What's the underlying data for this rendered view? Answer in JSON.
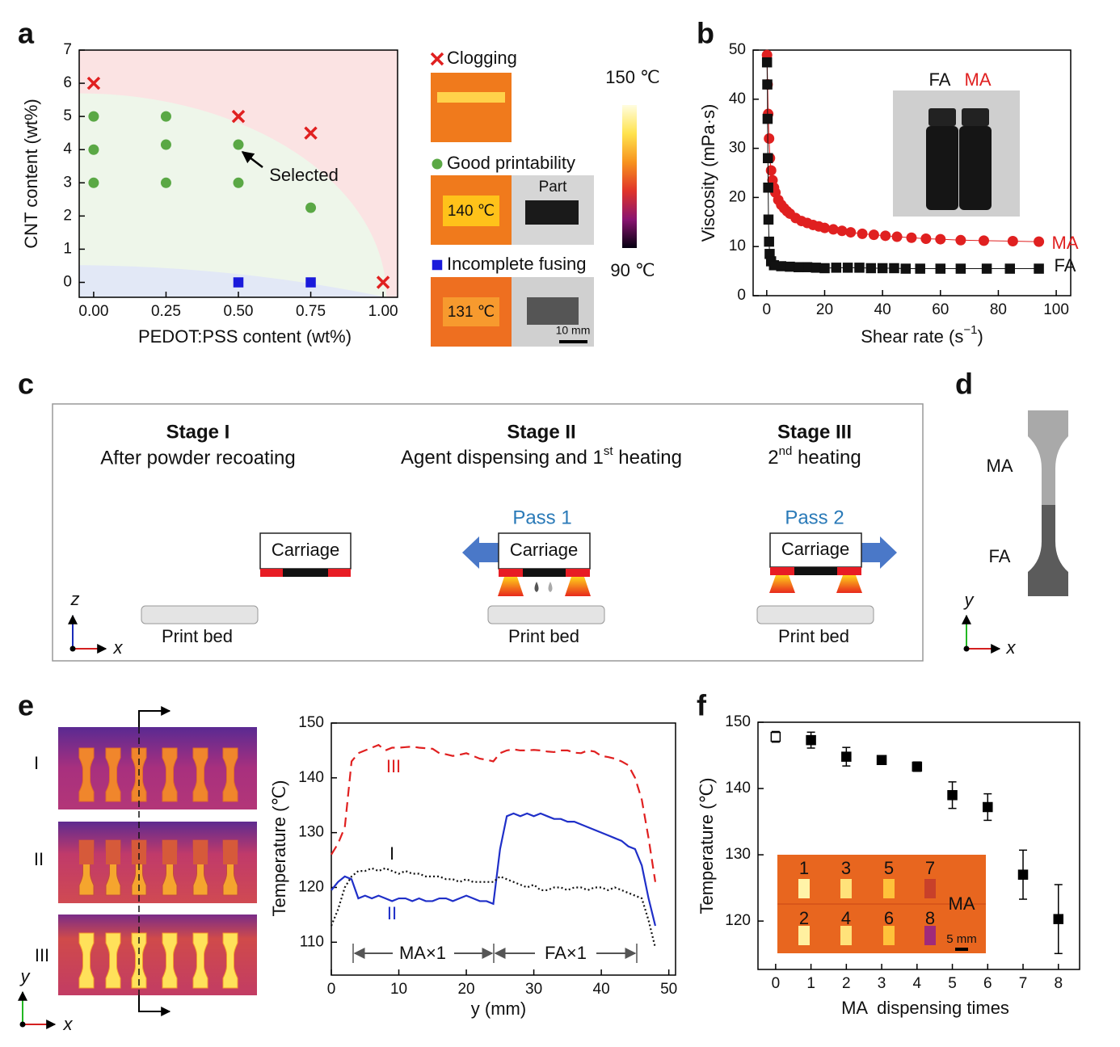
{
  "panel_labels": [
    "a",
    "b",
    "c",
    "d",
    "e",
    "f"
  ],
  "chart_data": [
    {
      "type": "scatter",
      "x_label": "PEDOT:PSS content (wt%)",
      "y_label": "CNT content (wt%)",
      "xlim": [
        -0.05,
        1.05
      ],
      "ylim": [
        -0.45,
        7
      ],
      "xticks": [
        {
          "value": 0,
          "label": "0.00"
        },
        0.25,
        {
          "value": 0.5,
          "label": "0.50"
        },
        0.75,
        {
          "value": 1,
          "label": "1.00"
        }
      ],
      "yticks": [
        0,
        1,
        2,
        3,
        4,
        5,
        6,
        7
      ],
      "series": [
        {
          "name": "Clogging",
          "color": "#e02020",
          "marker": "x",
          "x": [
            0,
            0.5,
            0.75,
            1
          ],
          "values": [
            6,
            5,
            4.5,
            0
          ]
        },
        {
          "name": "Good printability",
          "color": "#5aa845",
          "marker": "circle",
          "x": [
            0,
            0,
            0,
            0.25,
            0.25,
            0.25,
            0.5,
            0.5,
            0.75
          ],
          "values": [
            5,
            4,
            3,
            5,
            4.15,
            3,
            4.15,
            3,
            2.25
          ]
        },
        {
          "name": "Incomplete fusing",
          "color": "#1a1adb",
          "marker": "square",
          "x": [
            0.5,
            0.75
          ],
          "values": [
            0,
            0
          ]
        }
      ],
      "annotation": "Selected",
      "image_labels": {
        "good_temp": "140 ℃",
        "part": "Part",
        "fusing_temp": "131 ℃",
        "scale_bar": "10 mm"
      },
      "colorbar": {
        "lim": [
          90,
          150
        ],
        "ticks": [
          {
            "value": 150,
            "label": "150 ℃"
          },
          {
            "value": 90,
            "label": "90 ℃"
          }
        ]
      }
    },
    {
      "type": "line",
      "x_label": [
        "Shear rate (s",
        "−1",
        ")"
      ],
      "y_label": "Viscosity (mPa·s)",
      "xlim": [
        -4.7,
        105
      ],
      "ylim": [
        0,
        50
      ],
      "xticks": [
        0,
        20,
        40,
        60,
        80,
        100
      ],
      "yticks": [
        0,
        10,
        20,
        30,
        40,
        50
      ],
      "series": [
        {
          "name": "MA",
          "color": "#e02020",
          "marker": "circle",
          "x": [
            0.1,
            0.3,
            0.5,
            0.8,
            1.1,
            1.5,
            2,
            2.5,
            3,
            4,
            5,
            6,
            7,
            8,
            10,
            12,
            14,
            16,
            18,
            20,
            23,
            26,
            29,
            33,
            37,
            41,
            45,
            50,
            55,
            60,
            67,
            75,
            85,
            94
          ],
          "values": [
            49,
            43,
            37,
            32,
            28,
            25.5,
            23.5,
            22,
            21,
            19.5,
            18.5,
            17.8,
            17.2,
            16.7,
            15.8,
            15.2,
            14.8,
            14.4,
            14.1,
            13.8,
            13.5,
            13.2,
            12.9,
            12.6,
            12.4,
            12.2,
            12,
            11.8,
            11.6,
            11.5,
            11.3,
            11.2,
            11.1,
            11
          ]
        },
        {
          "name": "FA",
          "color": "#111111",
          "marker": "square",
          "x": [
            0.1,
            0.2,
            0.3,
            0.4,
            0.5,
            0.6,
            0.8,
            1,
            1.5,
            2.5,
            5,
            8,
            11,
            14,
            17,
            20,
            24,
            28,
            32,
            36,
            40,
            44,
            48,
            53,
            60,
            67,
            76,
            84,
            94
          ],
          "values": [
            47.5,
            43,
            36,
            28,
            22,
            15.5,
            11,
            8.5,
            7,
            6.2,
            6,
            5.9,
            5.8,
            5.8,
            5.7,
            5.6,
            5.7,
            5.7,
            5.7,
            5.6,
            5.6,
            5.6,
            5.5,
            5.5,
            5.5,
            5.5,
            5.5,
            5.5,
            5.5
          ]
        }
      ]
    },
    {
      "type": "line",
      "x_label": "y (mm)",
      "y_label": "Temperature (℃)",
      "xlim": [
        0,
        51
      ],
      "ylim": [
        104,
        150
      ],
      "xticks": [
        0,
        10,
        20,
        30,
        40,
        50
      ],
      "yticks": [
        110,
        120,
        130,
        140,
        150
      ],
      "x": [
        0,
        1,
        2,
        3,
        4,
        5,
        6,
        7,
        8,
        9,
        10,
        11,
        12,
        13,
        14,
        15,
        16,
        17,
        18,
        19,
        20,
        21,
        22,
        23,
        24,
        25,
        26,
        27,
        28,
        29,
        30,
        31,
        32,
        33,
        34,
        35,
        36,
        37,
        38,
        39,
        40,
        41,
        42,
        43,
        44,
        45,
        46,
        47,
        48
      ],
      "series": [
        {
          "name": "III",
          "color": "#e02020",
          "dash": "dashed",
          "values": [
            126,
            128,
            131,
            143,
            144.5,
            145,
            145.5,
            146,
            145,
            145.5,
            145.5,
            145.6,
            145.7,
            145.5,
            145.4,
            145.3,
            144.5,
            144.3,
            144,
            144.2,
            144.5,
            144,
            143.5,
            143.3,
            143,
            144.5,
            145,
            145.2,
            145,
            145,
            145.1,
            145,
            144.8,
            144.7,
            145,
            145,
            144.6,
            144.5,
            145,
            144.8,
            144,
            143.8,
            143.5,
            143,
            142.3,
            140,
            136,
            129,
            121
          ]
        },
        {
          "name": "II",
          "color": "#1f2fc8",
          "dash": "solid",
          "values": [
            119.5,
            121,
            122,
            121.5,
            118,
            118.5,
            118,
            118.5,
            118,
            117.5,
            118,
            118,
            117.5,
            118,
            117.5,
            117.5,
            118,
            118,
            117.5,
            118,
            118.5,
            118,
            117.5,
            117.5,
            117,
            127,
            133,
            133.5,
            133,
            133.5,
            133,
            133.5,
            133,
            132.5,
            132.5,
            132,
            132,
            131.5,
            131,
            130.5,
            130,
            129.5,
            129,
            128.5,
            127.5,
            127,
            124,
            118,
            113
          ]
        },
        {
          "name": "I",
          "color": "#111111",
          "dash": "dotted",
          "values": [
            113,
            116,
            120,
            122,
            123,
            123,
            123.5,
            123,
            123.5,
            123,
            122.5,
            123,
            122.5,
            122.5,
            122,
            122,
            122,
            121.5,
            121.5,
            121,
            121.5,
            121,
            121,
            121,
            121,
            122,
            121.5,
            121,
            120.5,
            120,
            120.5,
            119.5,
            119.5,
            120,
            120,
            119.5,
            120,
            120,
            119.5,
            120,
            120,
            119.5,
            120,
            119.5,
            119,
            118.5,
            118,
            114,
            109
          ]
        }
      ],
      "annotations": [
        "MA×1",
        "FA×1"
      ],
      "image_labels": [
        "I",
        "II",
        "III"
      ],
      "axes": [
        "y",
        "x"
      ]
    },
    {
      "type": "scatter",
      "x_label": "MA  dispensing times",
      "y_label": "Temperature (℃)",
      "xlim": [
        -0.5,
        8.6
      ],
      "ylim": [
        112.7,
        150
      ],
      "xticks": [
        0,
        1,
        2,
        3,
        4,
        5,
        6,
        7,
        8
      ],
      "yticks": [
        120,
        130,
        140,
        150
      ],
      "x": [
        0,
        1,
        2,
        3,
        4,
        5,
        6,
        7,
        8
      ],
      "values": [
        147.8,
        147.3,
        144.8,
        144.3,
        143.3,
        139,
        137.2,
        127,
        120.3
      ],
      "errors": [
        0.8,
        1.2,
        1.4,
        0.6,
        0.7,
        2,
        2,
        3.7,
        5.2
      ],
      "color": "#000000",
      "marker_fills": [
        "#ffffff",
        "#000000",
        "#000000",
        "#000000",
        "#000000",
        "#000000",
        "#000000",
        "#000000",
        "#000000"
      ],
      "inset": {
        "labels": [
          "1",
          "3",
          "5",
          "7",
          "2",
          "4",
          "6",
          "8"
        ],
        "tag": "MA",
        "scale_bar": "5 mm"
      }
    }
  ],
  "diagram_c": {
    "stages": [
      {
        "title": "Stage I",
        "subtitle": [
          "After powder recoating"
        ]
      },
      {
        "title": "Stage II",
        "subtitle": [
          "Agent dispensing and 1",
          "st",
          " heating"
        ],
        "pass": "Pass 1"
      },
      {
        "title": "Stage III",
        "subtitle": [
          "2",
          "nd",
          " heating"
        ],
        "pass": "Pass 2"
      }
    ],
    "carriage": "Carriage",
    "bed": "Print bed",
    "axes": [
      "z",
      "x"
    ]
  },
  "diagram_d": {
    "labels": [
      "MA",
      "FA"
    ],
    "axes": [
      "y",
      "x"
    ]
  }
}
